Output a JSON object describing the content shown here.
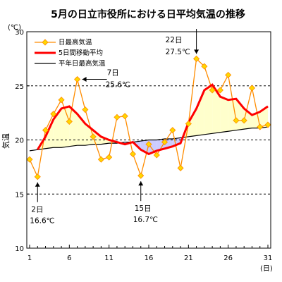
{
  "chart_data": {
    "type": "line",
    "title": "5月の日立市役所における日平均気温の推移",
    "ylabel": "気温",
    "y_unit": "(℃)",
    "x_unit": "(日)",
    "xlim": [
      1,
      31
    ],
    "ylim": [
      10,
      30
    ],
    "x_ticks": [
      "1",
      "6",
      "11",
      "16",
      "21",
      "26",
      "31"
    ],
    "y_ticks": [
      "10",
      "15",
      "20",
      "25",
      "30"
    ],
    "grid": "dashed horizontal at 15, 20, 25",
    "legend_position": "top-left",
    "x": [
      1,
      2,
      3,
      4,
      5,
      6,
      7,
      8,
      9,
      10,
      11,
      12,
      13,
      14,
      15,
      16,
      17,
      18,
      19,
      20,
      21,
      22,
      23,
      24,
      25,
      26,
      27,
      28,
      29,
      30,
      31
    ],
    "series": [
      {
        "name": "日最高気温",
        "color": "#ff8c00",
        "marker_color": "#ffd700",
        "values": [
          18.2,
          16.6,
          20.9,
          22.4,
          23.7,
          21.7,
          25.6,
          22.8,
          20.3,
          18.2,
          18.4,
          22.1,
          22.2,
          18.7,
          16.7,
          19.6,
          18.6,
          19.8,
          20.9,
          17.4,
          21.5,
          27.5,
          26.8,
          24.6,
          24.6,
          26.0,
          21.8,
          21.8,
          24.8,
          21.2,
          21.4
        ]
      },
      {
        "name": "5日間移動平均",
        "color": "#ff0000",
        "values": [
          null,
          19.1,
          20.3,
          21.9,
          22.9,
          23.1,
          22.4,
          21.5,
          20.9,
          20.3,
          20.0,
          19.8,
          19.6,
          19.8,
          19.1,
          18.7,
          19.0,
          19.2,
          19.4,
          19.7,
          21.6,
          22.9,
          24.6,
          25.1,
          24.0,
          23.7,
          23.8,
          22.9,
          22.3,
          22.6,
          23.1
        ]
      },
      {
        "name": "平年日最高気温",
        "color": "#000000",
        "values": [
          19.0,
          19.1,
          19.2,
          19.3,
          19.3,
          19.4,
          19.5,
          19.5,
          19.6,
          19.6,
          19.7,
          19.7,
          19.8,
          19.8,
          19.9,
          20.0,
          20.0,
          20.1,
          20.1,
          20.2,
          20.3,
          20.4,
          20.5,
          20.6,
          20.7,
          20.8,
          20.9,
          21.0,
          21.1,
          21.1,
          21.2
        ]
      }
    ],
    "fill": {
      "above_color": "#ffffcc",
      "below_color": "#ccccff",
      "between": [
        "5日間移動平均",
        "平年日最高気温"
      ]
    },
    "annotations": [
      {
        "day": "7日",
        "temp": "25.6℃",
        "x": 7,
        "y": 25.6,
        "arrow": "left",
        "label_side": "right"
      },
      {
        "day": "22日",
        "temp": "27.5℃",
        "x": 22,
        "y": 27.5,
        "arrow": "down",
        "label_side": "top-left"
      },
      {
        "day": "2日",
        "temp": "16.6℃",
        "x": 2,
        "y": 16.6,
        "arrow": "up",
        "label_side": "below"
      },
      {
        "day": "15日",
        "temp": "16.7℃",
        "x": 15,
        "y": 16.7,
        "arrow": "up",
        "label_side": "below"
      }
    ]
  }
}
